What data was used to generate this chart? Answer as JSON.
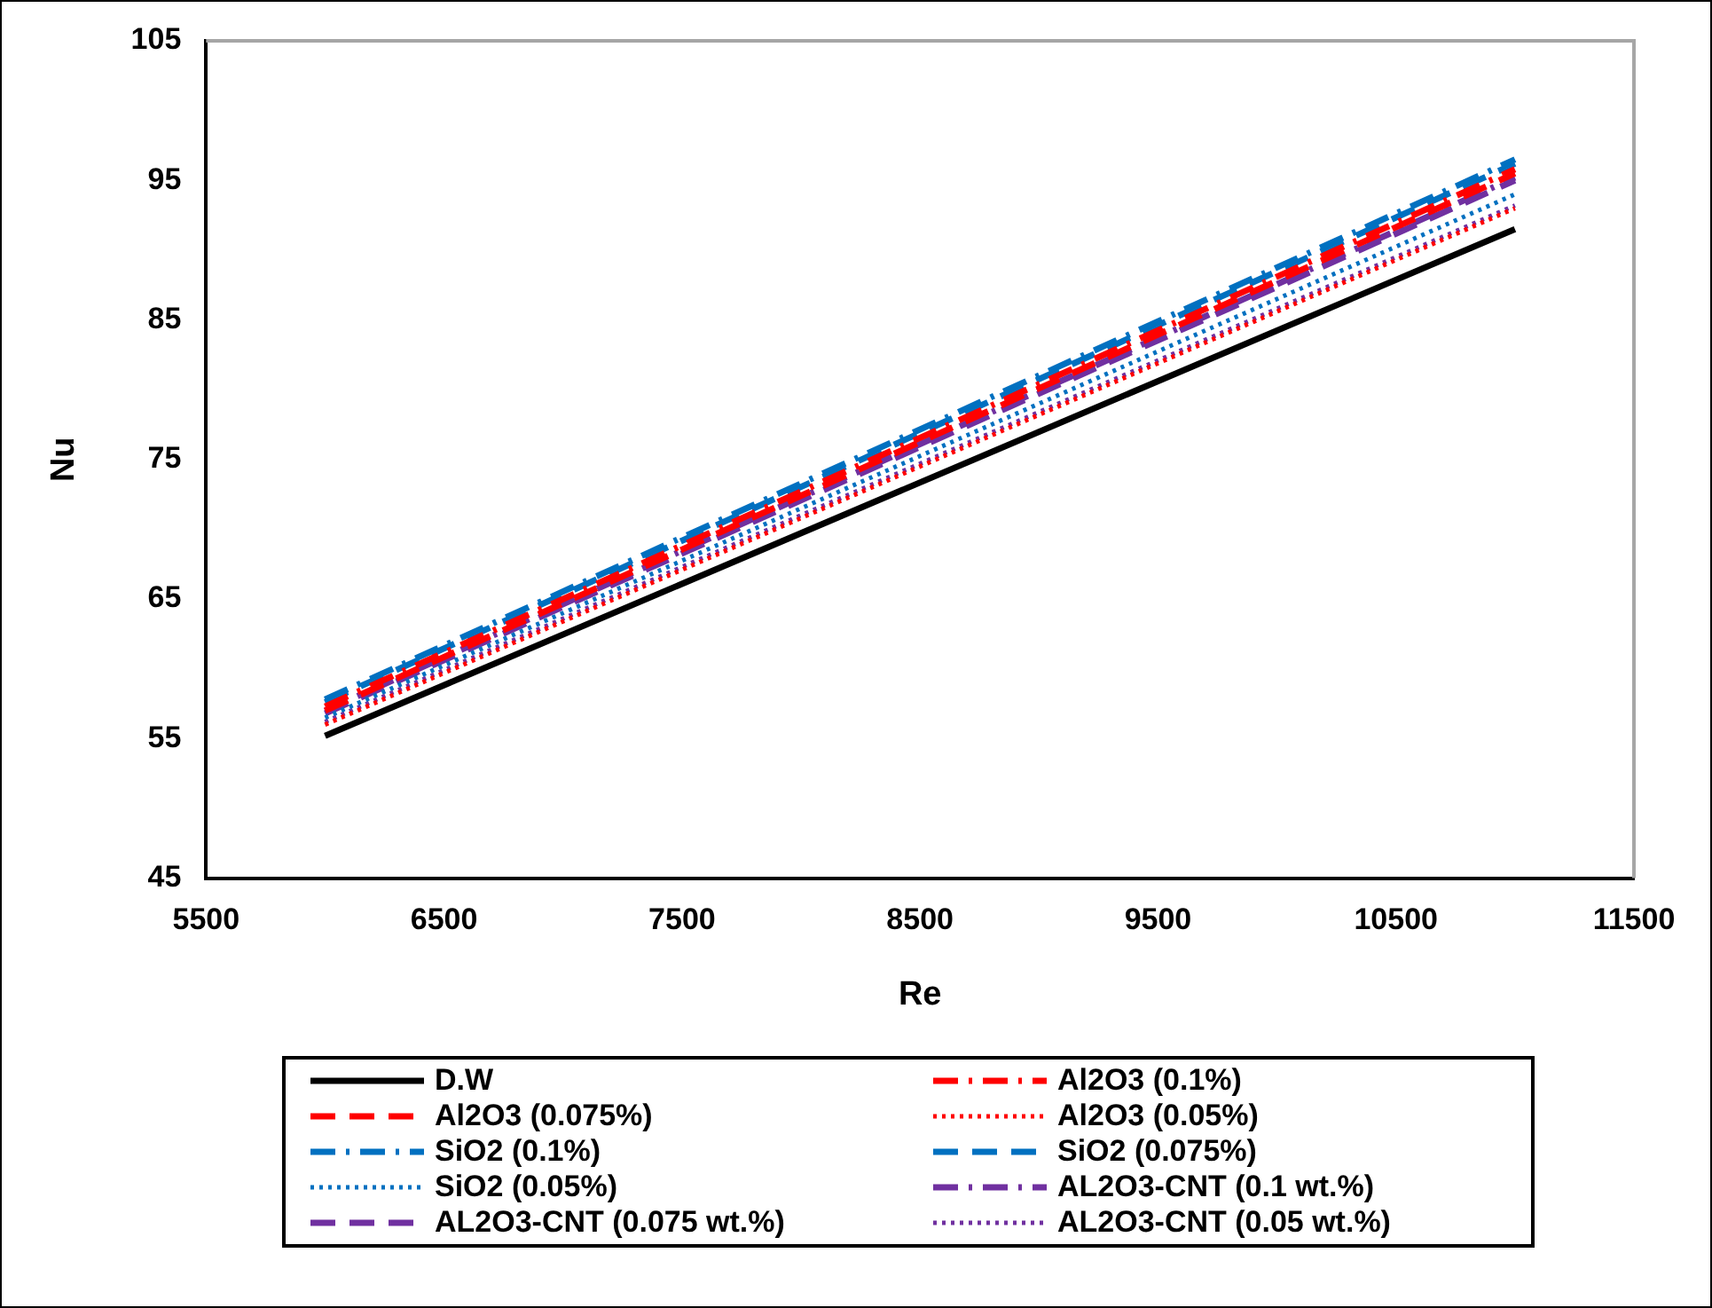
{
  "chart_data": {
    "type": "line",
    "xlabel": "Re",
    "ylabel": "Nu",
    "x": [
      6000,
      11000
    ],
    "xlim": [
      5500,
      11500
    ],
    "xticks": [
      5500,
      6500,
      7500,
      8500,
      9500,
      10500,
      11500
    ],
    "ylim": [
      45,
      105
    ],
    "yticks": [
      45,
      55,
      65,
      75,
      85,
      95,
      105
    ],
    "grid": false,
    "legend": "bottom",
    "marker": "none",
    "series": [
      {
        "name": "D.W",
        "color": "#000000",
        "line_style": "solid",
        "values": [
          55.2,
          91.5
        ]
      },
      {
        "name": "Al2O3 (0.1%)",
        "color": "#ff0000",
        "line_style": "dashdot",
        "values": [
          57.3,
          95.8
        ]
      },
      {
        "name": "Al2O3 (0.075%)",
        "color": "#ff0000",
        "line_style": "dashed",
        "values": [
          57.0,
          95.5
        ]
      },
      {
        "name": "Al2O3 (0.05%)",
        "color": "#ff0000",
        "line_style": "dotted",
        "values": [
          56.0,
          93.0
        ]
      },
      {
        "name": "SiO2 (0.1%)",
        "color": "#0070c0",
        "line_style": "dashdot",
        "values": [
          57.8,
          96.5
        ]
      },
      {
        "name": "SiO2 (0.075%)",
        "color": "#0070c0",
        "line_style": "dashed",
        "values": [
          57.6,
          96.2
        ]
      },
      {
        "name": "SiO2 (0.05%)",
        "color": "#0070c0",
        "line_style": "dotted",
        "values": [
          56.5,
          94.0
        ]
      },
      {
        "name": "AL2O3-CNT (0.1 wt.%)",
        "color": "#7030a0",
        "line_style": "dashdot",
        "values": [
          57.0,
          95.2
        ]
      },
      {
        "name": "AL2O3-CNT (0.075 wt.%)",
        "color": "#7030a0",
        "line_style": "dashed",
        "values": [
          56.8,
          95.0
        ]
      },
      {
        "name": "AL2O3-CNT (0.05 wt.%)",
        "color": "#7030a0",
        "line_style": "dotted",
        "values": [
          56.2,
          93.2
        ]
      }
    ]
  }
}
